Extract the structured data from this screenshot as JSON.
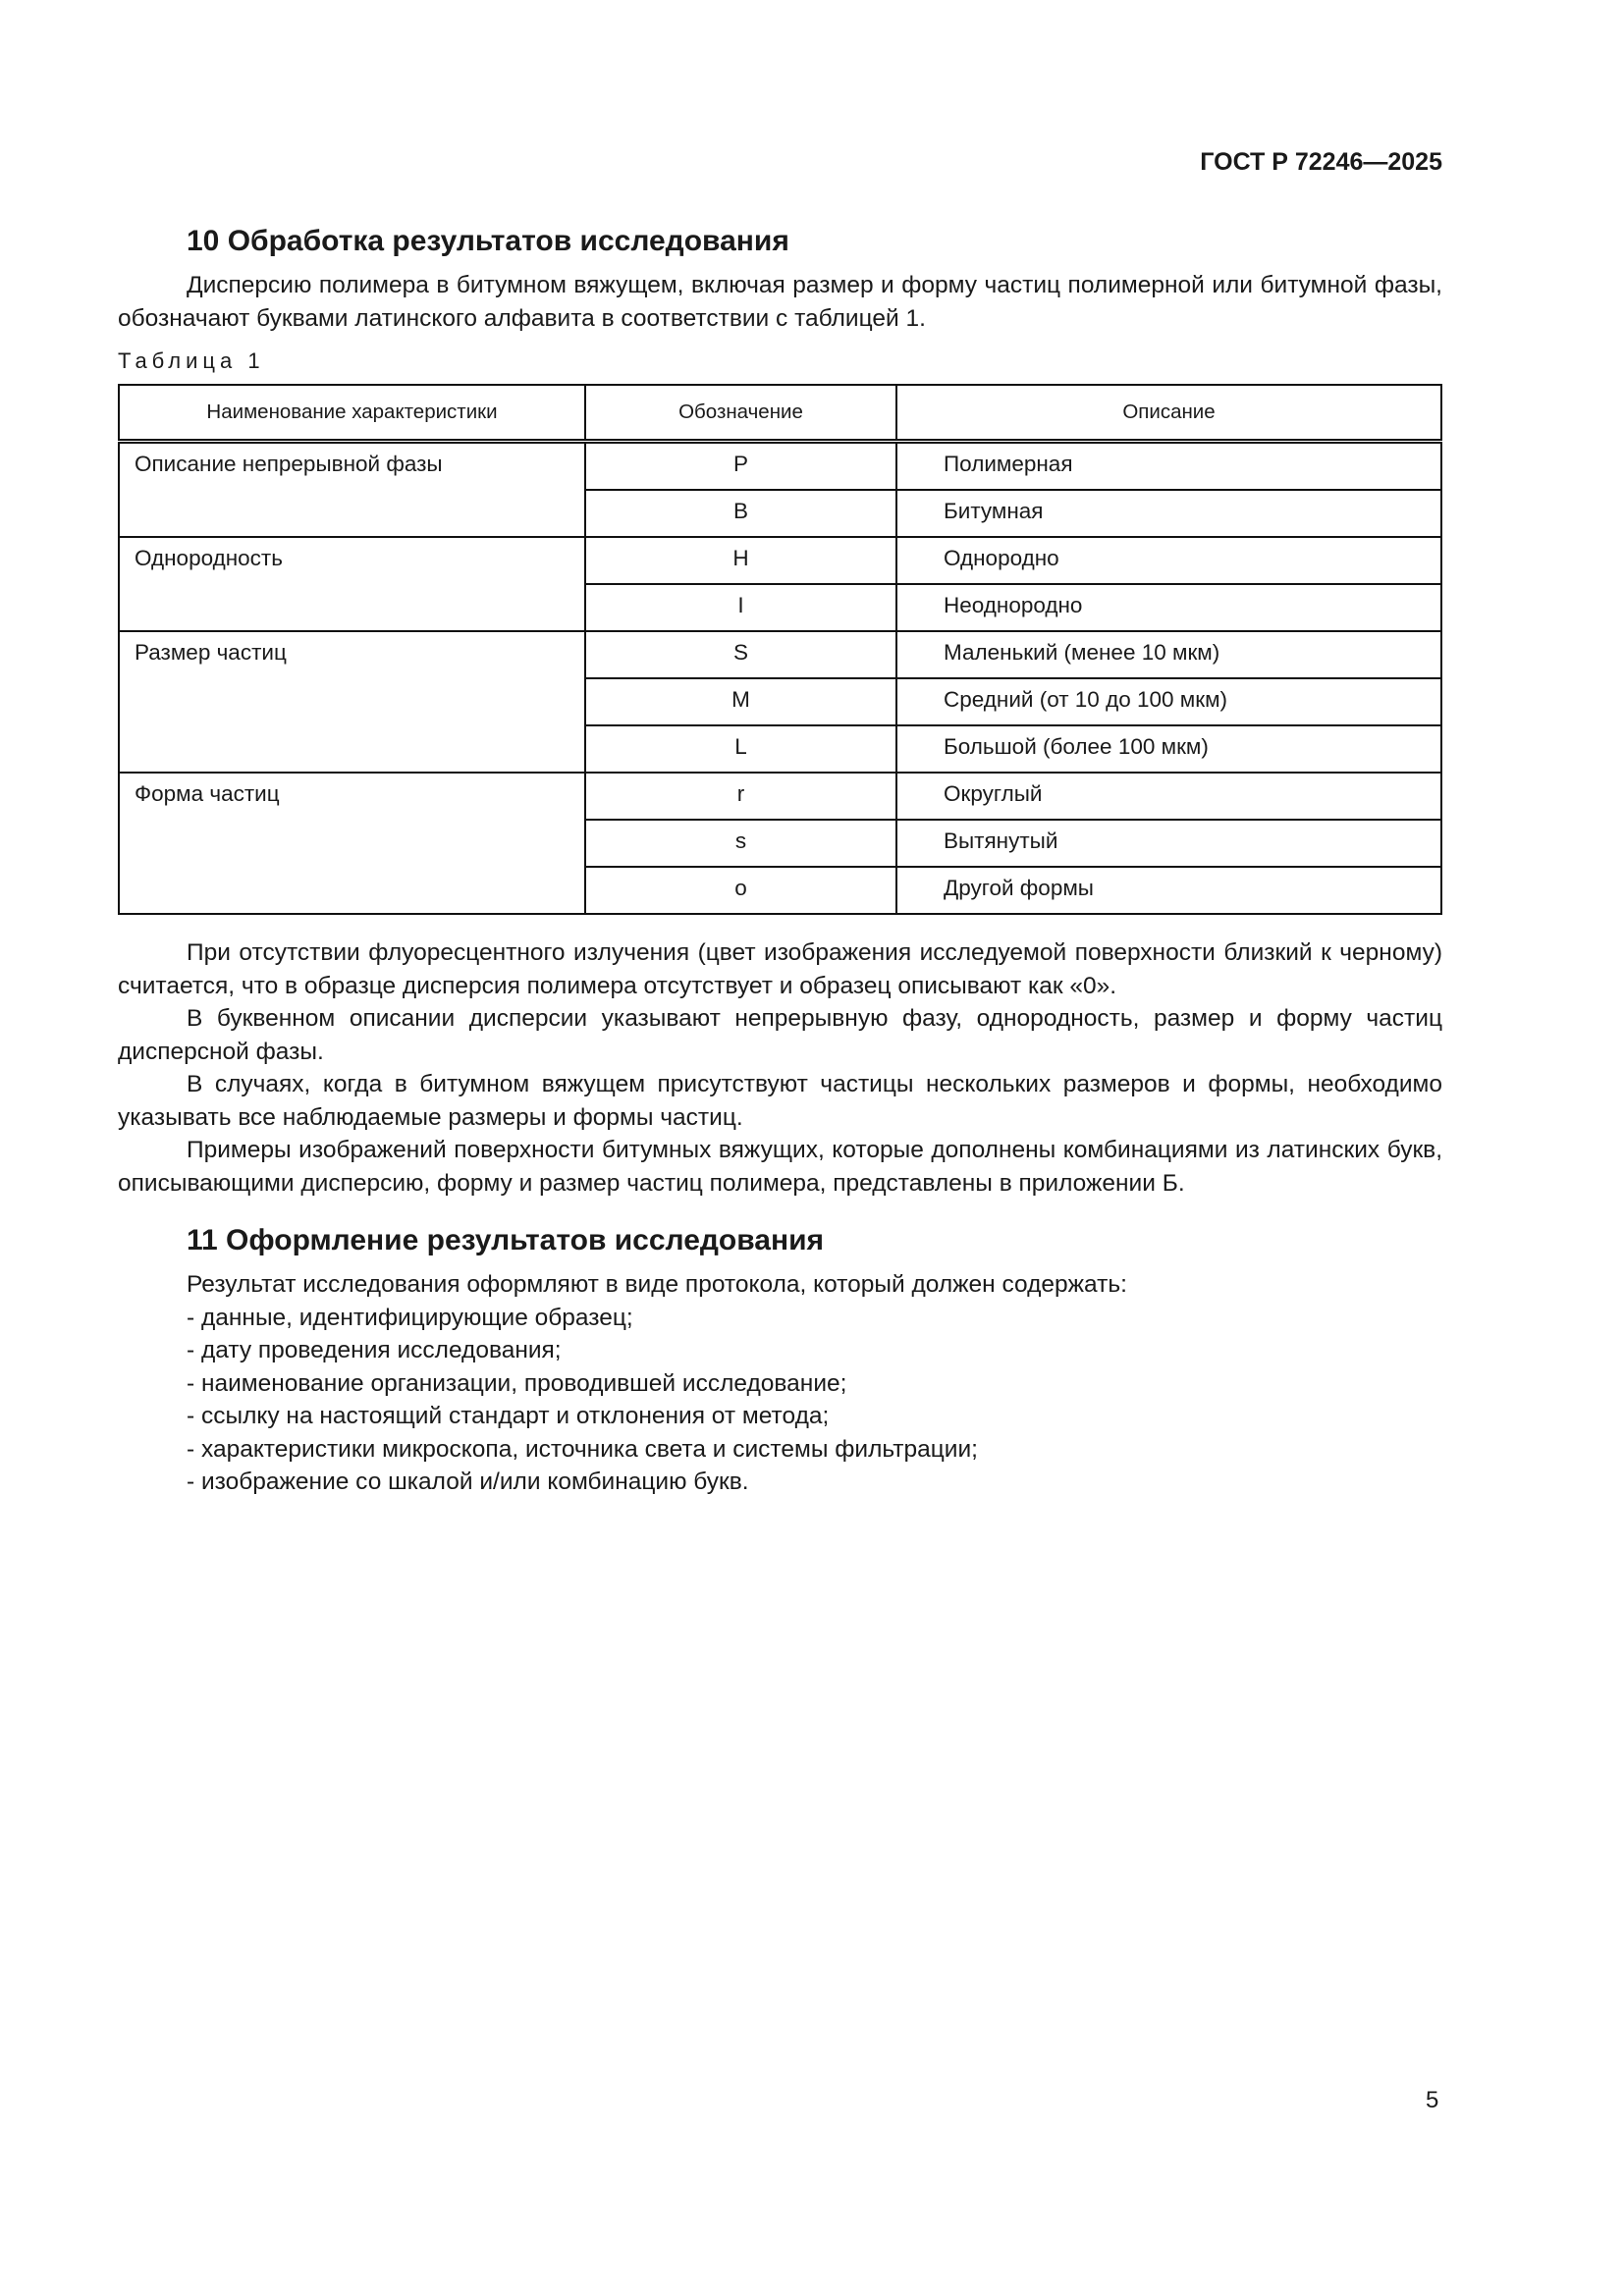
{
  "header": {
    "doc_code": "ГОСТ Р 72246—2025"
  },
  "section10": {
    "title": "10  Обработка результатов исследования",
    "intro": "Дисперсию полимера в битумном вяжущем, включая размер и форму частиц полимерной или битумной фазы, обозначают буквами латинского алфавита в соответствии с таблицей 1.",
    "table_caption": "Таблица 1",
    "table": {
      "headers": [
        "Наименование характеристики",
        "Обозначение",
        "Описание"
      ],
      "groups": [
        {
          "name": "Описание непрерывной фазы",
          "rows": [
            {
              "code": "P",
              "desc": "Полимерная"
            },
            {
              "code": "B",
              "desc": "Битумная"
            }
          ]
        },
        {
          "name": "Однородность",
          "rows": [
            {
              "code": "H",
              "desc": "Однородно"
            },
            {
              "code": "I",
              "desc": "Неоднородно"
            }
          ]
        },
        {
          "name": "Размер частиц",
          "rows": [
            {
              "code": "S",
              "desc": "Маленький (менее 10 мкм)"
            },
            {
              "code": "M",
              "desc": "Средний (от 10 до 100 мкм)"
            },
            {
              "code": "L",
              "desc": "Большой (более 100 мкм)"
            }
          ]
        },
        {
          "name": "Форма частиц",
          "rows": [
            {
              "code": "r",
              "desc": "Округлый"
            },
            {
              "code": "s",
              "desc": "Вытянутый"
            },
            {
              "code": "o",
              "desc": "Другой формы"
            }
          ]
        }
      ]
    },
    "paragraphs": [
      "При отсутствии флуоресцентного излучения (цвет изображения исследуемой поверхности близкий к черному) считается, что в образце дисперсия полимера отсутствует и образец описывают как «0».",
      "В буквенном описании дисперсии указывают непрерывную фазу, однородность, размер и форму частиц дисперсной фазы.",
      "В случаях, когда в битумном вяжущем присутствуют частицы нескольких размеров и формы, необходимо указывать все наблюдаемые размеры и формы частиц.",
      "Примеры изображений поверхности битумных вяжущих, которые дополнены комбинациями из латинских букв, описывающими дисперсию, форму и размер частиц полимера, представлены в приложении Б."
    ]
  },
  "section11": {
    "title": "11  Оформление результатов исследования",
    "lines": [
      "Результат исследования оформляют в виде протокола, который должен содержать:",
      "- данные, идентифицирующие образец;",
      "- дату проведения исследования;",
      "- наименование организации, проводившей исследование;",
      "- ссылку на настоящий стандарт и отклонения от метода;",
      "- характеристики микроскопа, источника света и системы фильтрации;",
      "- изображение со шкалой и/или комбинацию букв."
    ]
  },
  "footer": {
    "page_number": "5"
  }
}
